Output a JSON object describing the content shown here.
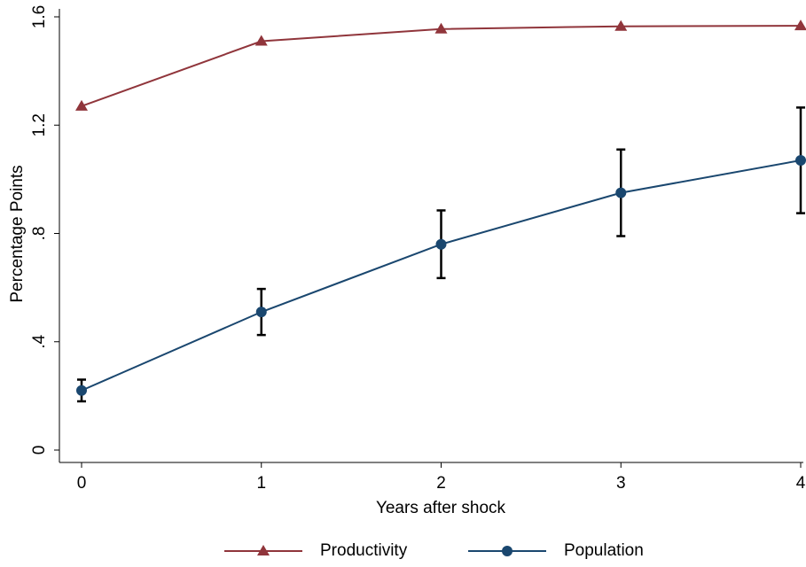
{
  "chart_data": {
    "type": "line",
    "x_label": "Years after shock",
    "y_label": "Percentage Points",
    "x": [
      0,
      1,
      2,
      3,
      4
    ],
    "xlim": [
      0,
      4
    ],
    "xticks": [
      0,
      1,
      2,
      3,
      4
    ],
    "ylim": [
      0,
      1.6
    ],
    "yticks": [
      0,
      {
        "value": 0.4,
        "label": ".4"
      },
      {
        "value": 0.8,
        "label": ".8"
      },
      1.2,
      1.6
    ],
    "legend": "bottom",
    "series": [
      {
        "name": "Productivity",
        "color": "#90353b",
        "marker": "triangle",
        "values": [
          1.27,
          1.51,
          1.555,
          1.565,
          1.567
        ]
      },
      {
        "name": "Population",
        "color": "#1a476f",
        "marker": "circle",
        "values": [
          0.22,
          0.51,
          0.76,
          0.95,
          1.07
        ],
        "errors": [
          0.04,
          0.085,
          0.125,
          0.16,
          0.195
        ]
      }
    ]
  }
}
